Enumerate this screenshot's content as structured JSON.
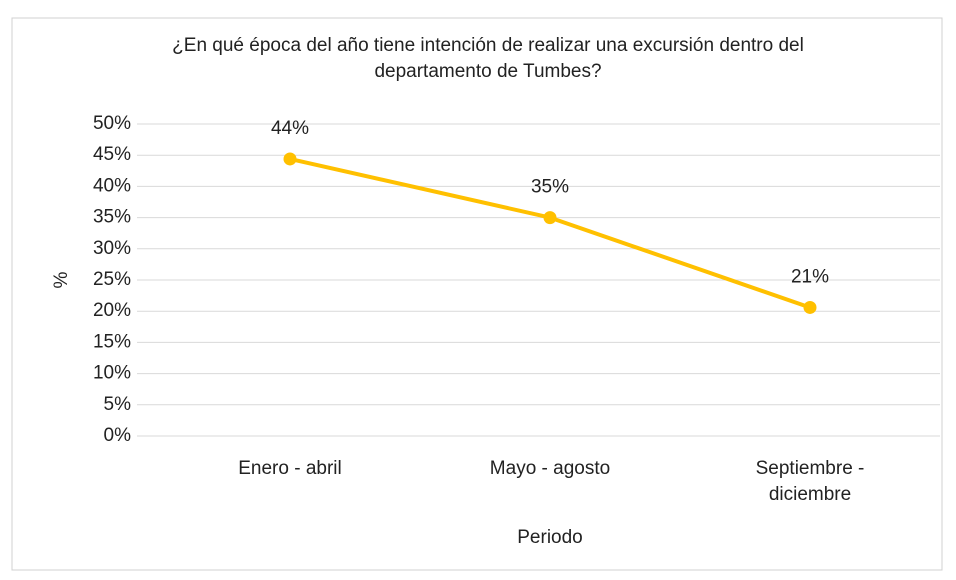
{
  "chart_data": {
    "type": "line",
    "title": "¿En qué época del año tiene intención de realizar una excursión dentro del departamento de Tumbes?",
    "x_label": "Periodo",
    "y_label": "%",
    "categories": [
      "Enero - abril",
      "Mayo - agosto",
      "Septiembre - diciembre"
    ],
    "values": [
      44.4,
      35,
      20.6
    ],
    "value_labels": [
      "44%",
      "35%",
      "21%"
    ],
    "color": "#FFC000",
    "ylim": [
      0,
      50
    ],
    "yticks": [
      {
        "value": 0,
        "label": "0%"
      },
      {
        "value": 5,
        "label": "5%"
      },
      {
        "value": 10,
        "label": "10%"
      },
      {
        "value": 15,
        "label": "15%"
      },
      {
        "value": 20,
        "label": "20%"
      },
      {
        "value": 25,
        "label": "25%"
      },
      {
        "value": 30,
        "label": "30%"
      },
      {
        "value": 35,
        "label": "35%"
      },
      {
        "value": 40,
        "label": "40%"
      },
      {
        "value": 45,
        "label": "45%"
      },
      {
        "value": 50,
        "label": "50%"
      }
    ],
    "grid": true
  }
}
